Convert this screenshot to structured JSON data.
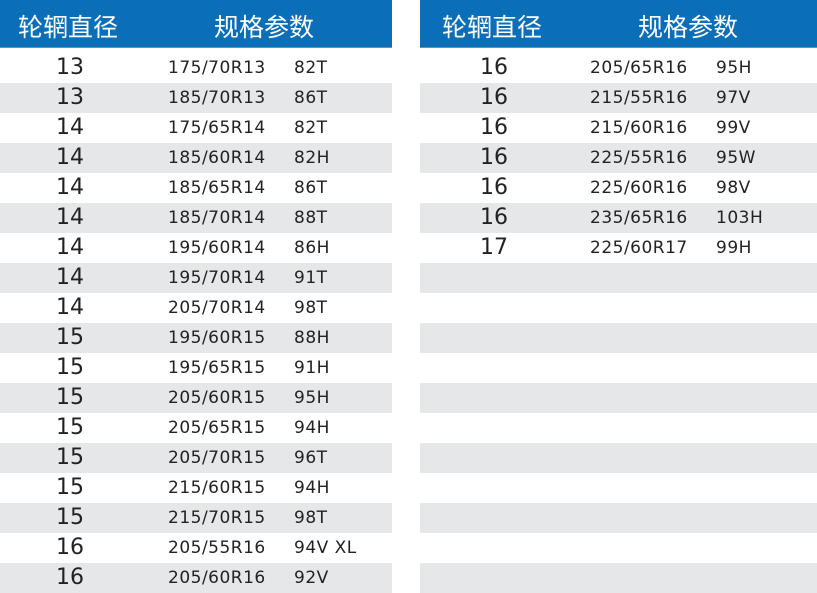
{
  "headers": {
    "rim_diameter": "轮辋直径",
    "spec": "规格参数"
  },
  "colors": {
    "header": "#0a6fb8",
    "stripe": "#e6e7e9"
  },
  "left_rows": [
    [
      "13",
      "175/70R13",
      "82T"
    ],
    [
      "13",
      "185/70R13",
      "86T"
    ],
    [
      "14",
      "175/65R14",
      "82T"
    ],
    [
      "14",
      "185/60R14",
      "82H"
    ],
    [
      "14",
      "185/65R14",
      "86T"
    ],
    [
      "14",
      "185/70R14",
      "88T"
    ],
    [
      "14",
      "195/60R14",
      "86H"
    ],
    [
      "14",
      "195/70R14",
      "91T"
    ],
    [
      "14",
      "205/70R14",
      "98T"
    ],
    [
      "15",
      "195/60R15",
      "88H"
    ],
    [
      "15",
      "195/65R15",
      "91H"
    ],
    [
      "15",
      "205/60R15",
      "95H"
    ],
    [
      "15",
      "205/65R15",
      "94H"
    ],
    [
      "15",
      "205/70R15",
      "96T"
    ],
    [
      "15",
      "215/60R15",
      "94H"
    ],
    [
      "15",
      "215/70R15",
      "98T"
    ],
    [
      "16",
      "205/55R16",
      "94V XL"
    ],
    [
      "16",
      "205/60R16",
      "92V"
    ]
  ],
  "right_rows": [
    [
      "16",
      "205/65R16",
      "95H"
    ],
    [
      "16",
      "215/55R16",
      "97V"
    ],
    [
      "16",
      "215/60R16",
      "99V"
    ],
    [
      "16",
      "225/55R16",
      "95W"
    ],
    [
      "16",
      "225/60R16",
      "98V"
    ],
    [
      "16",
      "235/65R16",
      "103H"
    ],
    [
      "17",
      "225/60R17",
      "99H"
    ]
  ]
}
